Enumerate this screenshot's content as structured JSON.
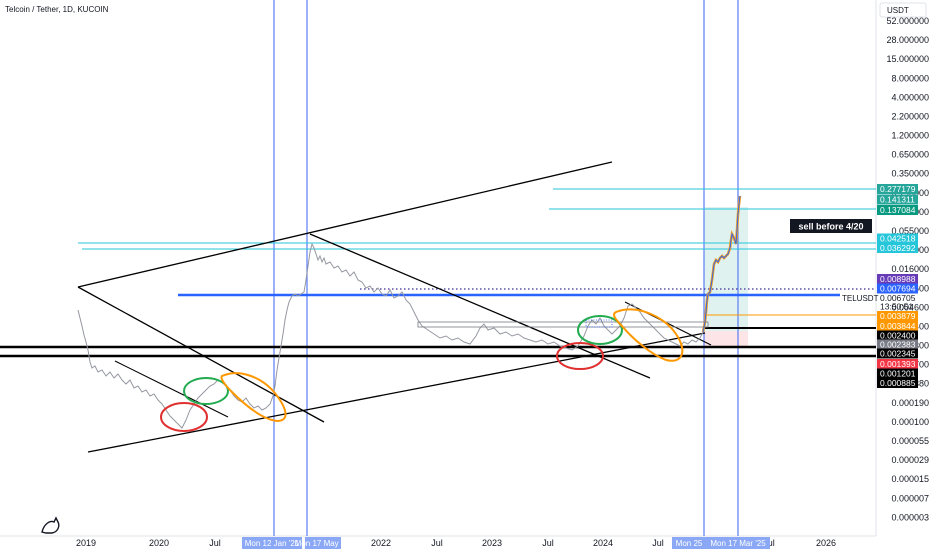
{
  "header": {
    "title": "Telcoin / Tether, 1D, KUCOIN",
    "currency": "USDT"
  },
  "chart_data": {
    "type": "line",
    "title": "Telcoin / Tether, 1D, KUCOIN",
    "scale": "log",
    "xlabel": "",
    "ylabel": "",
    "y_ticks": [
      "52.000000",
      "28.000000",
      "15.000000",
      "8.000000",
      "4.000000",
      "2.200000",
      "1.200000",
      "0.650000",
      "0.350000",
      "0.190000",
      "0.100000",
      "0.055000",
      "0.029000",
      "0.016000",
      "0.008600",
      "0.004600",
      "0.002400",
      "0.001300",
      "0.000700",
      "0.000380",
      "0.000190",
      "0.000100",
      "0.000055",
      "0.000029",
      "0.000015",
      "0.000007",
      "0.000003"
    ],
    "x_ticks": [
      "2019",
      "2020",
      "Jul",
      "2022",
      "Jul",
      "2023",
      "Jul",
      "2024",
      "Jul",
      "Jul",
      "2026"
    ],
    "x_date_labels": [
      "Mon 12 Jan '21",
      "Mon 17 May '21",
      "Mon 25",
      "Mon 17 Mar '25"
    ],
    "price_labels": [
      {
        "value": "0.277179",
        "bg": "#26a69a",
        "fg": "#ffffff"
      },
      {
        "value": "0.141311",
        "bg": "#26a69a",
        "fg": "#ffffff"
      },
      {
        "value": "0.137084",
        "bg": "#089981",
        "fg": "#ffffff"
      },
      {
        "value": "0.042518",
        "bg": "#26c6da",
        "fg": "#ffffff"
      },
      {
        "value": "0.036292",
        "bg": "#26c6da",
        "fg": "#ffffff"
      },
      {
        "value": "0.008988",
        "bg": "#673ab7",
        "fg": "#ffffff"
      },
      {
        "value": "0.007694",
        "bg": "#2962ff",
        "fg": "#ffffff"
      },
      {
        "value": "0.006705",
        "bg": "#ffffff",
        "fg": "#131722"
      },
      {
        "value": "13:50:51",
        "bg": "#ffffff",
        "fg": "#131722"
      },
      {
        "value": "0.003879",
        "bg": "#ff9800",
        "fg": "#ffffff"
      },
      {
        "value": "0.003844",
        "bg": "#ff9800",
        "fg": "#ffffff"
      },
      {
        "value": "0.002400",
        "bg": "#000000",
        "fg": "#ffffff"
      },
      {
        "value": "0.002383",
        "bg": "#787b86",
        "fg": "#ffffff"
      },
      {
        "value": "0.002345",
        "bg": "#000000",
        "fg": "#ffffff"
      },
      {
        "value": "0.001393",
        "bg": "#f23645",
        "fg": "#ffffff"
      },
      {
        "value": "0.001201",
        "bg": "#000000",
        "fg": "#ffffff"
      },
      {
        "value": "0.000885",
        "bg": "#000000",
        "fg": "#ffffff"
      }
    ],
    "symbol_label": "TELUSDT",
    "annotations": [
      "sell before 4/20"
    ],
    "colors": {
      "channel": "#000000",
      "horizontal_blue": "#2962ff",
      "vertical_blue": "#2962ff",
      "cyan": "#26c6da",
      "red": "#f23645",
      "green": "#22ab94",
      "orange": "#ff9800"
    },
    "grid": false
  }
}
